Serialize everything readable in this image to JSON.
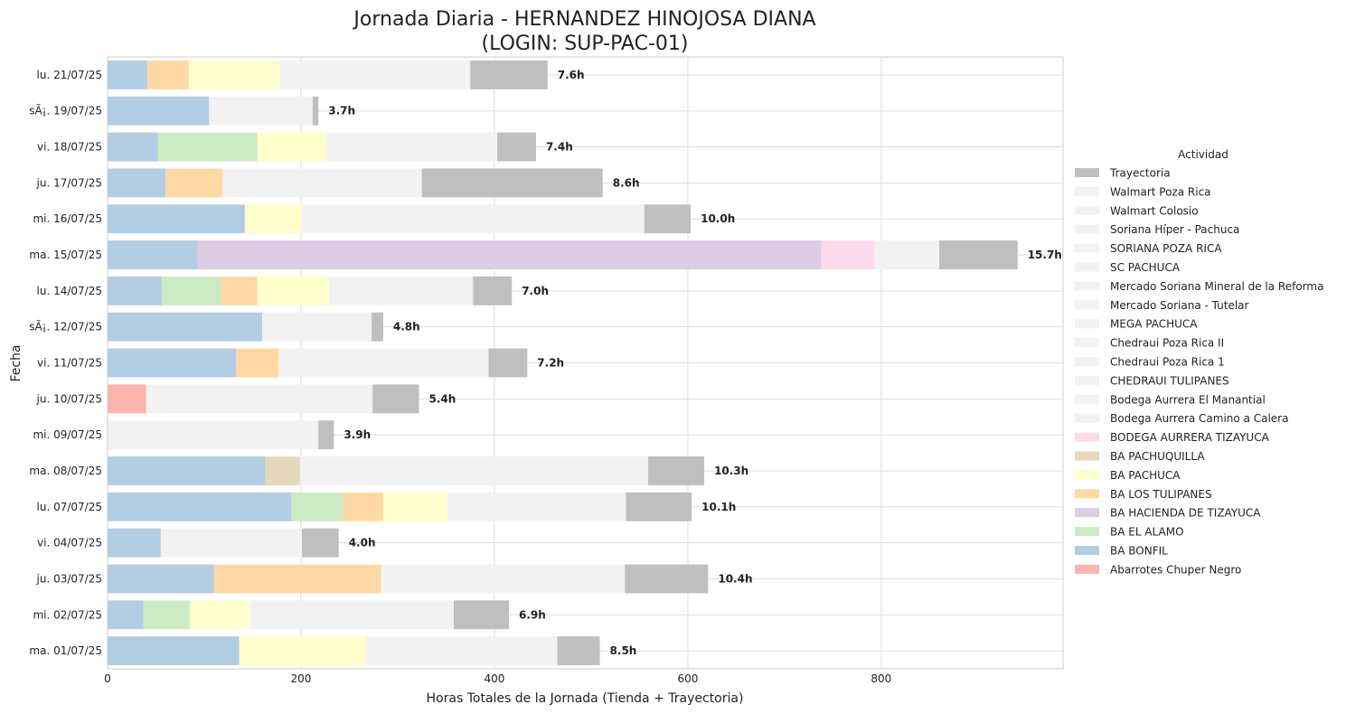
{
  "chart_data": {
    "type": "bar",
    "orientation": "horizontal",
    "stacked": true,
    "title_line1": "Jornada Diaria - HERNANDEZ HINOJOSA DIANA",
    "title_line2": "(LOGIN: SUP-PAC-01)",
    "xlabel": "Horas Totales de la Jornada (Tienda + Trayectoria)",
    "ylabel": "Fecha",
    "xlim": [
      0,
      988
    ],
    "xticks": [
      0,
      200,
      400,
      600,
      800
    ],
    "grid": true,
    "legend": {
      "title": "Actividad",
      "placement": "center-right"
    },
    "categories": [
      "lu. 21/07/25",
      "sÃ¡. 19/07/25",
      "vi. 18/07/25",
      "ju. 17/07/25",
      "mi. 16/07/25",
      "ma. 15/07/25",
      "lu. 14/07/25",
      "sÃ¡. 12/07/25",
      "vi. 11/07/25",
      "ju. 10/07/25",
      "mi. 09/07/25",
      "ma. 08/07/25",
      "lu. 07/07/25",
      "vi. 04/07/25",
      "ju. 03/07/25",
      "mi. 02/07/25",
      "ma. 01/07/25"
    ],
    "totals": [
      "7.6h",
      "3.7h",
      "7.4h",
      "8.6h",
      "10.0h",
      "15.7h",
      "7.0h",
      "4.8h",
      "7.2h",
      "5.4h",
      "3.9h",
      "10.3h",
      "10.1h",
      "4.0h",
      "10.4h",
      "6.9h",
      "8.5h"
    ],
    "segments": [
      [
        [
          "BA BONFIL",
          41
        ],
        [
          "BA LOS TULIPANES",
          43
        ],
        [
          "BA PACHUCA",
          94
        ],
        [
          "Walmart Poza Rica",
          197
        ],
        [
          "Trayectoria",
          80
        ]
      ],
      [
        [
          "BA BONFIL",
          105
        ],
        [
          "Walmart Poza Rica",
          107
        ],
        [
          "Trayectoria",
          6
        ]
      ],
      [
        [
          "BA BONFIL",
          52
        ],
        [
          "BA EL ALAMO",
          103
        ],
        [
          "BA PACHUCA",
          71
        ],
        [
          "Walmart Poza Rica",
          177
        ],
        [
          "Trayectoria",
          40
        ]
      ],
      [
        [
          "BA BONFIL",
          60
        ],
        [
          "BA LOS TULIPANES",
          59
        ],
        [
          "Walmart Poza Rica",
          206
        ],
        [
          "Trayectoria",
          187
        ]
      ],
      [
        [
          "BA BONFIL",
          142
        ],
        [
          "BA PACHUCA",
          58
        ],
        [
          "Walmart Poza Rica",
          355
        ],
        [
          "Trayectoria",
          48
        ]
      ],
      [
        [
          "BA BONFIL",
          93
        ],
        [
          "BA HACIENDA DE TIZAYUCA",
          645
        ],
        [
          "BODEGA AURRERA TIZAYUCA",
          55
        ],
        [
          "Walmart Poza Rica",
          67
        ],
        [
          "Trayectoria",
          81
        ]
      ],
      [
        [
          "BA BONFIL",
          56
        ],
        [
          "BA EL ALAMO",
          61
        ],
        [
          "BA LOS TULIPANES",
          38
        ],
        [
          "BA PACHUCA",
          74
        ],
        [
          "Walmart Poza Rica",
          149
        ],
        [
          "Trayectoria",
          40
        ]
      ],
      [
        [
          "BA BONFIL",
          160
        ],
        [
          "Walmart Poza Rica",
          113
        ],
        [
          "Trayectoria",
          12
        ]
      ],
      [
        [
          "BA BONFIL",
          133
        ],
        [
          "BA LOS TULIPANES",
          44
        ],
        [
          "Walmart Poza Rica",
          217
        ],
        [
          "Trayectoria",
          40
        ]
      ],
      [
        [
          "Abarrotes Chuper Negro",
          40
        ],
        [
          "Walmart Poza Rica",
          234
        ],
        [
          "Trayectoria",
          48
        ]
      ],
      [
        [
          "Walmart Poza Rica",
          218
        ],
        [
          "Trayectoria",
          16
        ]
      ],
      [
        [
          "BA BONFIL",
          163
        ],
        [
          "BA PACHUQUILLA",
          36
        ],
        [
          "Walmart Poza Rica",
          360
        ],
        [
          "Trayectoria",
          58
        ]
      ],
      [
        [
          "BA BONFIL",
          190
        ],
        [
          "BA EL ALAMO",
          53
        ],
        [
          "BA LOS TULIPANES",
          42
        ],
        [
          "BA PACHUCA",
          66
        ],
        [
          "Walmart Poza Rica",
          185
        ],
        [
          "Trayectoria",
          68
        ]
      ],
      [
        [
          "BA BONFIL",
          55
        ],
        [
          "Walmart Poza Rica",
          146
        ],
        [
          "Trayectoria",
          38
        ]
      ],
      [
        [
          "BA BONFIL",
          110
        ],
        [
          "BA LOS TULIPANES",
          173
        ],
        [
          "Walmart Poza Rica",
          252
        ],
        [
          "Trayectoria",
          86
        ]
      ],
      [
        [
          "BA BONFIL",
          37
        ],
        [
          "BA EL ALAMO",
          48
        ],
        [
          "BA PACHUCA",
          62
        ],
        [
          "Walmart Poza Rica",
          211
        ],
        [
          "Trayectoria",
          57
        ]
      ],
      [
        [
          "BA BONFIL",
          136
        ],
        [
          "BA PACHUCA",
          131
        ],
        [
          "Walmart Poza Rica",
          198
        ],
        [
          "Trayectoria",
          44
        ]
      ]
    ],
    "legend_entries": [
      "Trayectoria",
      "Walmart Poza Rica",
      "Walmart Colosio",
      "Soriana Híper - Pachuca",
      "SORIANA POZA RICA",
      "SC PACHUCA",
      "Mercado Soriana Mineral de la Reforma",
      "Mercado Soriana - Tutelar",
      "MEGA PACHUCA",
      "Chedraui Poza Rica II",
      "Chedraui Poza Rica 1",
      "CHEDRAUI TULIPANES",
      "Bodega Aurrera El Manantial",
      "Bodega Aurrera Camino a Calera",
      "BODEGA AURRERA TIZAYUCA",
      "BA PACHUQUILLA",
      "BA PACHUCA",
      "BA LOS TULIPANES",
      "BA HACIENDA DE TIZAYUCA",
      "BA EL ALAMO",
      "BA BONFIL",
      "Abarrotes Chuper Negro"
    ],
    "colors": {
      "Trayectoria": "#bfbfbf",
      "Walmart Poza Rica": "#f2f2f2",
      "Walmart Colosio": "#f2f2f2",
      "Soriana Híper - Pachuca": "#f2f2f2",
      "SORIANA POZA RICA": "#f2f2f2",
      "SC PACHUCA": "#f2f2f2",
      "Mercado Soriana Mineral de la Reforma": "#f2f2f2",
      "Mercado Soriana - Tutelar": "#f2f2f2",
      "MEGA PACHUCA": "#f2f2f2",
      "Chedraui Poza Rica II": "#f2f2f2",
      "Chedraui Poza Rica 1": "#f2f2f2",
      "CHEDRAUI TULIPANES": "#f2f2f2",
      "Bodega Aurrera El Manantial": "#f2f2f2",
      "Bodega Aurrera Camino a Calera": "#f2f2f2",
      "BODEGA AURRERA TIZAYUCA": "#fddaec",
      "BA PACHUQUILLA": "#e5d8bd",
      "BA PACHUCA": "#ffffcc",
      "BA LOS TULIPANES": "#fed9a6",
      "BA HACIENDA DE TIZAYUCA": "#decbe4",
      "BA EL ALAMO": "#ccebc5",
      "BA BONFIL": "#b3cde3",
      "Abarrotes Chuper Negro": "#fbb4ae"
    }
  }
}
